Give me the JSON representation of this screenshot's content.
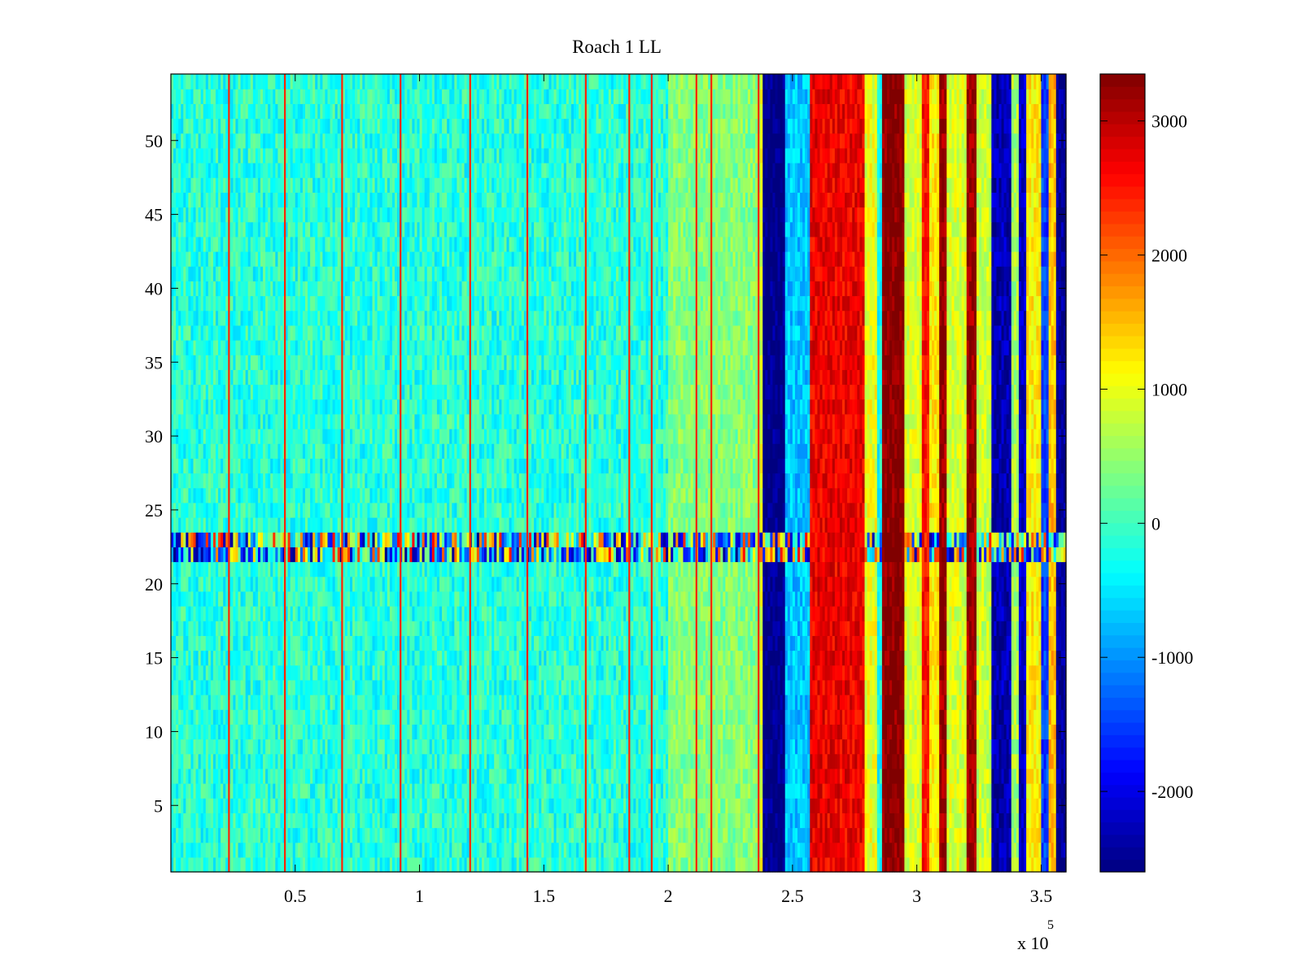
{
  "chart_data": {
    "type": "heatmap",
    "title": "Roach 1 LL",
    "xlabel": "",
    "ylabel": "",
    "x_exponent_label": "x 10",
    "x_exponent_power": "5",
    "xlim": [
      0,
      3.6
    ],
    "ylim": [
      0.5,
      54.5
    ],
    "x_ticks": [
      0.5,
      1,
      1.5,
      2,
      2.5,
      3,
      3.5
    ],
    "x_tick_labels": [
      "0.5",
      "1",
      "1.5",
      "2",
      "2.5",
      "3",
      "3.5"
    ],
    "y_ticks": [
      5,
      10,
      15,
      20,
      25,
      30,
      35,
      40,
      45,
      50
    ],
    "y_tick_labels": [
      "5",
      "10",
      "15",
      "20",
      "25",
      "30",
      "35",
      "40",
      "45",
      "50"
    ],
    "colorbar": {
      "range": [
        -2600,
        3350
      ],
      "ticks": [
        -2000,
        -1000,
        0,
        1000,
        2000,
        3000
      ],
      "tick_labels": [
        "-2000",
        "-1000",
        "0",
        "1000",
        "2000",
        "3000"
      ],
      "colormap": "jet"
    },
    "rows": 54,
    "background_value": -150,
    "spikes_x": [
      0.23,
      0.455,
      0.685,
      0.92,
      1.2,
      1.43,
      1.665,
      1.84,
      1.93,
      2.11,
      2.17,
      2.36
    ],
    "noisy_rows": [
      22,
      23
    ],
    "bands": [
      {
        "x0": 2.0,
        "x1": 2.37,
        "value": 400
      },
      {
        "x0": 2.37,
        "x1": 2.38,
        "value": 1000
      },
      {
        "x0": 2.38,
        "x1": 2.47,
        "value": -2600
      },
      {
        "x0": 2.47,
        "x1": 2.57,
        "value": -700
      },
      {
        "x0": 2.57,
        "x1": 2.79,
        "value": 2700
      },
      {
        "x0": 2.79,
        "x1": 2.84,
        "value": 1000
      },
      {
        "x0": 2.84,
        "x1": 2.86,
        "value": -300
      },
      {
        "x0": 2.86,
        "x1": 2.95,
        "value": 3350
      },
      {
        "x0": 2.95,
        "x1": 3.02,
        "value": 900
      },
      {
        "x0": 3.02,
        "x1": 3.05,
        "value": 2500
      },
      {
        "x0": 3.05,
        "x1": 3.09,
        "value": 1200
      },
      {
        "x0": 3.09,
        "x1": 3.12,
        "value": 3200
      },
      {
        "x0": 3.12,
        "x1": 3.2,
        "value": 900
      },
      {
        "x0": 3.2,
        "x1": 3.24,
        "value": 3200
      },
      {
        "x0": 3.24,
        "x1": 3.3,
        "value": 800
      },
      {
        "x0": 3.3,
        "x1": 3.38,
        "value": -2300
      },
      {
        "x0": 3.38,
        "x1": 3.41,
        "value": 600
      },
      {
        "x0": 3.41,
        "x1": 3.44,
        "value": -2200
      },
      {
        "x0": 3.44,
        "x1": 3.5,
        "value": 1200
      },
      {
        "x0": 3.5,
        "x1": 3.53,
        "value": -1500
      },
      {
        "x0": 3.53,
        "x1": 3.56,
        "value": 1500
      },
      {
        "x0": 3.56,
        "x1": 3.6,
        "value": -2500
      }
    ]
  }
}
